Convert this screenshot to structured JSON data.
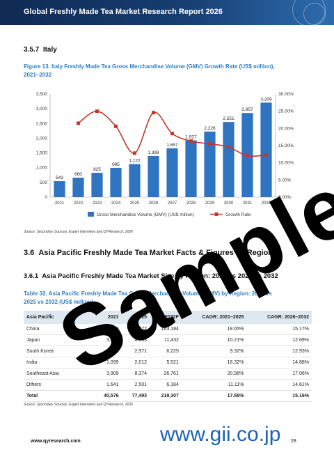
{
  "header": {
    "title": "Global Freshly Made Tea Market Research Report 2026"
  },
  "section_italy": {
    "number": "3.5.7",
    "title": "Italy"
  },
  "figure": {
    "caption_line1": "Figure 13.   Italy Freshly Made Tea Gross Merchandise Volume (GMV) Growth Rate (US$ million),",
    "caption_line2": "2021–2032",
    "source": "Source: Secondary Sources, Expert Interviews and QYResearch, 2026"
  },
  "chart_data": {
    "type": "bar",
    "categories": [
      "2021",
      "2022",
      "2023",
      "2024",
      "2025",
      "2026",
      "2027",
      "2028",
      "2029",
      "2030",
      "2031",
      "2032"
    ],
    "series": [
      {
        "name": "Gross Merchandise Volume (GMV) (US$ million)",
        "kind": "bar",
        "axis": "left",
        "color": "#2f74c0",
        "values": [
          543,
          660,
          825,
          995,
          1122,
          1398,
          1657,
          1927,
          2226,
          2551,
          2857,
          3209
        ],
        "labels": [
          "543",
          "660",
          "825",
          "995",
          "1,122",
          "1,398",
          "1,657",
          "1,927",
          "2,226",
          "2,551",
          "2,857",
          "3,209"
        ]
      },
      {
        "name": "Growth Rate",
        "kind": "line",
        "axis": "right",
        "color": "#c0392b",
        "values": [
          null,
          21.5,
          25.0,
          20.6,
          12.8,
          24.6,
          18.5,
          16.3,
          15.5,
          14.6,
          12.0,
          12.3
        ]
      }
    ],
    "ylim_left": [
      0,
      3500
    ],
    "yticks_left": [
      "0",
      "500",
      "1,000",
      "1,500",
      "2,000",
      "2,500",
      "3,000",
      "3,500"
    ],
    "ylim_right": [
      0,
      30
    ],
    "yticks_right": [
      "0.00%",
      "5.00%",
      "10.00%",
      "15.00%",
      "20.00%",
      "25.00%",
      "30.00%"
    ],
    "grid": false,
    "legend": "bottom"
  },
  "section_apac": {
    "number": "3.6",
    "title": "Asia Pacific Freshly Made Tea Market Facts & Figures by Region"
  },
  "subsection_apac": {
    "number": "3.6.1",
    "title": "Asia Pacific Freshly Made Tea Market Size by Region: 2021 vs 2025 vs 2032"
  },
  "table": {
    "caption_line1": "Table 32.   Asia Pacific Freshly Made Tea Gross Merchandise Volume (GMV) by Region: 2021 vs",
    "caption_line2": "2025 vs 2032 (US$ million)",
    "headers": [
      "Asia Pacific",
      "2021",
      "2025",
      "2032F",
      "CAGR: 2021–2025",
      "CAGR: 2026–2032"
    ],
    "rows": [
      [
        "China",
        "28,899",
        "57,272",
        "163,184",
        "18.65%",
        "15.17%"
      ],
      [
        "Japan",
        "3,228",
        "4,763",
        "11,432",
        "10.21%",
        "12.69%"
      ],
      [
        "South Korea",
        "1,800",
        "2,571",
        "6,225",
        "9.32%",
        "12.93%"
      ],
      [
        "India",
        "1,099",
        "2,012",
        "5,521",
        "16.32%",
        "14.88%"
      ],
      [
        "Southeast Asia",
        "3,909",
        "8,374",
        "26,761",
        "20.98%",
        "17.06%"
      ],
      [
        "Others",
        "1,641",
        "2,501",
        "6,184",
        "11.11%",
        "14.61%"
      ]
    ],
    "total": [
      "Total",
      "40,576",
      "77,493",
      "219,307",
      "17.56%",
      "15.16%"
    ],
    "source": "Source: Secondary Sources, Expert Interviews and QYResearch, 2026"
  },
  "footer": {
    "url": "www.qyresearch.com",
    "page": "28"
  },
  "watermark": {
    "text": "Sample",
    "site": "www.gii.co.jp"
  }
}
